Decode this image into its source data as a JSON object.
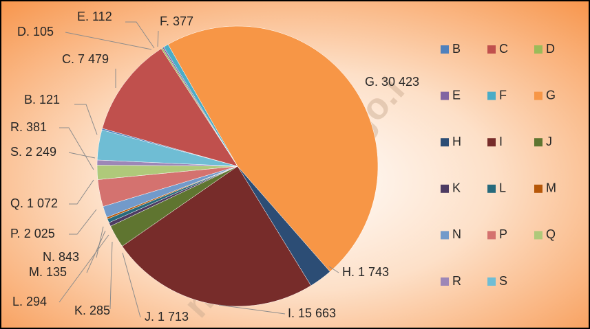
{
  "chart_data": {
    "type": "pie",
    "categories": [
      "B",
      "C",
      "D",
      "E",
      "F",
      "G",
      "H",
      "I",
      "J",
      "K",
      "L",
      "M",
      "N",
      "P",
      "Q",
      "R",
      "S"
    ],
    "values": [
      121,
      7479,
      105,
      112,
      377,
      30423,
      1743,
      15663,
      1713,
      285,
      294,
      135,
      843,
      2025,
      1072,
      381,
      2249
    ],
    "value_labels": [
      "B. 121",
      "C. 7 479",
      "D. 105",
      "E. 112",
      "F. 377",
      "G. 30 423",
      "H. 1 743",
      "I. 15 663",
      "J. 1 713",
      "K. 285",
      "L. 294",
      "M. 135",
      "N. 843",
      "P. 2 025",
      "Q. 1 072",
      "R. 381",
      "S. 2 249"
    ],
    "colors": [
      "#4f81bd",
      "#c0504d",
      "#9bbb59",
      "#8064a2",
      "#4bacc6",
      "#f79646",
      "#2c4d75",
      "#772c2a",
      "#5f7530",
      "#4d3b62",
      "#276a7c",
      "#b65708",
      "#729aca",
      "#d4726f",
      "#afc97a",
      "#9d87b7",
      "#6fbdd4"
    ],
    "legend": "right",
    "watermark": "ngunkab.bps.go.i"
  }
}
